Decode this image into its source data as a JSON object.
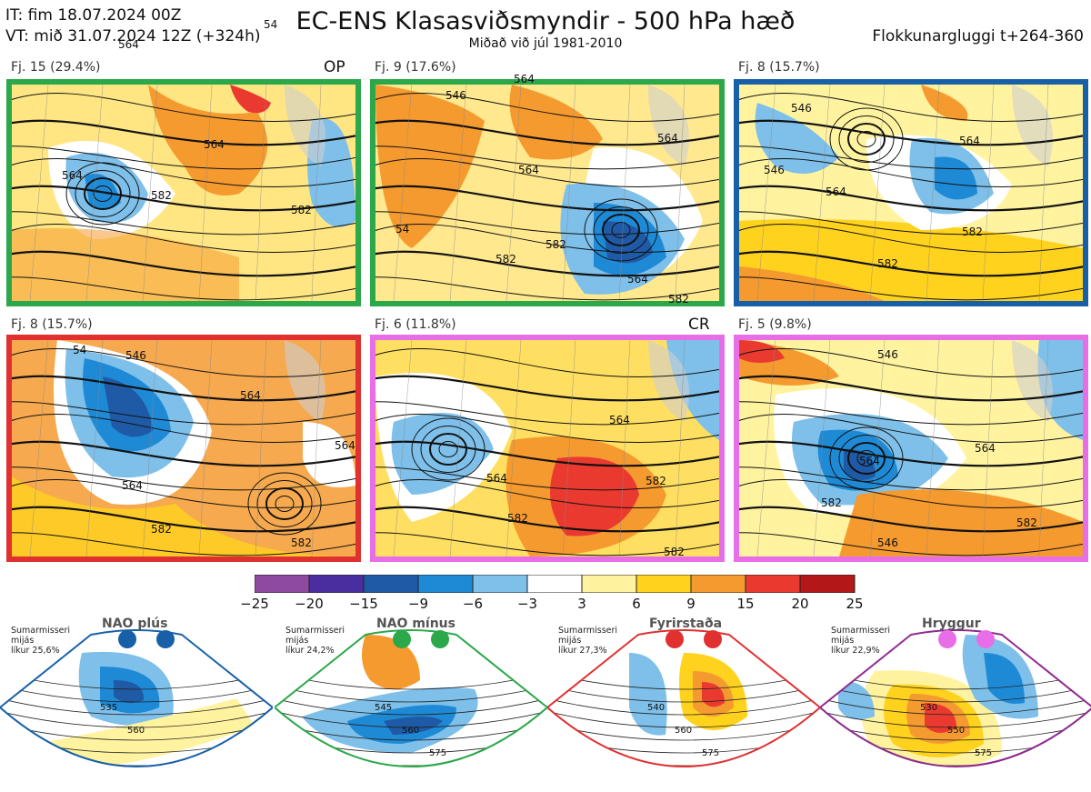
{
  "header": {
    "issue_time": "IT: fim 18.07.2024 00Z",
    "valid_time": "VT: mið 31.07.2024 12Z  (+324h)",
    "title": "EC-ENS Klasasviðsmyndir - 500 hPa hæð",
    "subtitle": "Miðað við júl 1981-2010",
    "cluster_window": "Flokkunargluggi t+264-360"
  },
  "panels": [
    {
      "label": "Fj. 15 (29.4%)",
      "tag": "OP",
      "frame_color": "#2aa84a",
      "contours": [
        "564",
        "564",
        "564",
        "582",
        "582",
        "54"
      ]
    },
    {
      "label": "Fj. 9 (17.6%)",
      "tag": "",
      "frame_color": "#2aa84a",
      "contours": [
        "546",
        "564",
        "564",
        "582",
        "582",
        "564",
        "564",
        "582",
        "54"
      ]
    },
    {
      "label": "Fj. 8 (15.7%)",
      "tag": "",
      "frame_color": "#1760a8",
      "contours": [
        "546",
        "564",
        "546",
        "564",
        "582",
        "582"
      ]
    },
    {
      "label": "Fj. 8 (15.7%)",
      "tag": "",
      "frame_color": "#e03030",
      "contours": [
        "546",
        "564",
        "564",
        "564",
        "582",
        "582",
        "54"
      ]
    },
    {
      "label": "Fj. 6 (11.8%)",
      "tag": "CR",
      "frame_color": "#e86ee8",
      "contours": [
        "564",
        "564",
        "582",
        "582",
        "582"
      ]
    },
    {
      "label": "Fj. 5 (9.8%)",
      "tag": "",
      "frame_color": "#e86ee8",
      "contours": [
        "546",
        "564",
        "564",
        "582",
        "582",
        "546"
      ]
    }
  ],
  "colorbar": {
    "ticks": [
      "−25",
      "−20",
      "−15",
      "−9",
      "−6",
      "−3",
      "3",
      "6",
      "9",
      "15",
      "20",
      "25"
    ],
    "colors": [
      "#8e4aa0",
      "#4a2ea0",
      "#1f5aa6",
      "#1e8ad6",
      "#7ec0ea",
      "#ffffff",
      "#fff3a0",
      "#ffd21e",
      "#f59a2f",
      "#ea3a30",
      "#b31717"
    ]
  },
  "regimes": [
    {
      "name": "NAO plús",
      "season": "Sumarmisseri",
      "quantity": "mijás",
      "prob": "líkur 25,6%",
      "frame_color": "#1760a8",
      "dot_color": "#1760a8",
      "contours": [
        "535",
        "560"
      ]
    },
    {
      "name": "NAO mínus",
      "season": "Sumarmisseri",
      "quantity": "mijás",
      "prob": "líkur 24,2%",
      "frame_color": "#2aa84a",
      "dot_color": "#2aa84a",
      "contours": [
        "545",
        "560",
        "575"
      ]
    },
    {
      "name": "Fyrirstaða",
      "season": "Sumarmisseri",
      "quantity": "mijás",
      "prob": "líkur 27,3%",
      "frame_color": "#e03030",
      "dot_color": "#e03030",
      "contours": [
        "540",
        "560",
        "575"
      ]
    },
    {
      "name": "Hryggur",
      "season": "Sumarmisseri",
      "quantity": "mijás",
      "prob": "líkur 22,9%",
      "frame_color": "#8e2a8e",
      "dot_color": "#e86ee8",
      "contours": [
        "530",
        "550",
        "575"
      ]
    }
  ]
}
